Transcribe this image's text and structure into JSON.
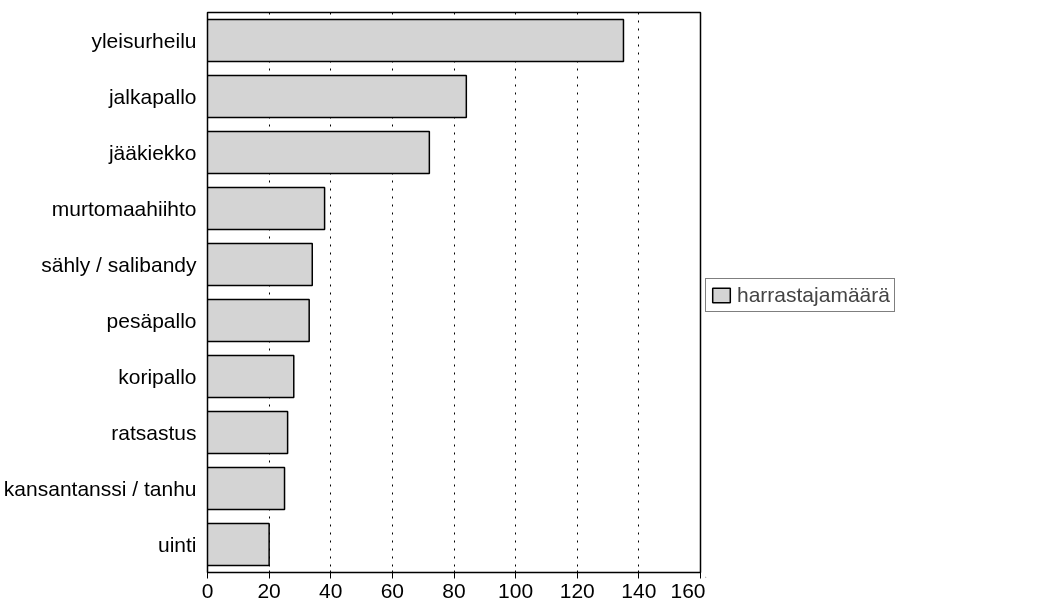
{
  "chart_data": {
    "type": "bar",
    "orientation": "horizontal",
    "categories": [
      "yleisurheilu",
      "jalkapallo",
      "jääkiekko",
      "murtomaahiihto",
      "sähly / salibandy",
      "pesäpallo",
      "koripallo",
      "ratsastus",
      "kansantanssi / tanhu",
      "uinti"
    ],
    "series": [
      {
        "name": "harrastajamäärä",
        "color": "#d4d4d4",
        "values": [
          135,
          84,
          72,
          38,
          34,
          33,
          28,
          26,
          25,
          20
        ]
      }
    ],
    "xlim": [
      0,
      160
    ],
    "xticks": [
      0,
      20,
      40,
      60,
      80,
      100,
      120,
      140,
      160
    ],
    "grid": "x",
    "legend": "right"
  }
}
